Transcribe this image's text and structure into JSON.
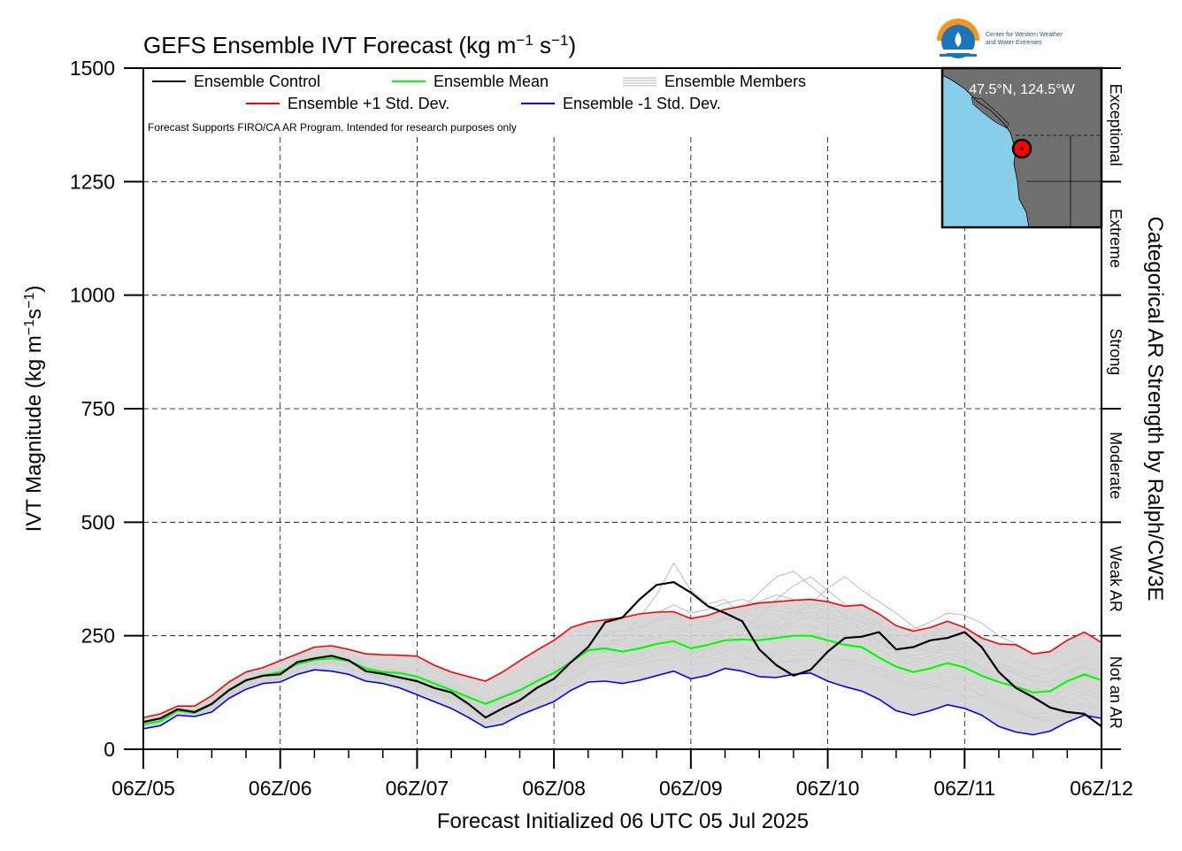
{
  "chart_data": {
    "type": "line",
    "title": "GEFS Ensemble IVT Forecast (kg m",
    "title_sup1": "−1",
    "title_s": " s",
    "title_sup2": "−1",
    "title_end": ")",
    "ylabel": "IVT Magnitude (kg m",
    "ylabel_sup1": "−1",
    "ylabel_s": "s",
    "ylabel_sup2": "−1",
    "ylabel_end": ")",
    "xlabel": "Forecast Initialized 06 UTC 05 Jul 2025",
    "right_label": "Categorical AR Strength by Ralph/CW3E",
    "ylim": [
      0,
      1500
    ],
    "xlim": [
      0,
      168
    ],
    "y_ticks": [
      0,
      250,
      500,
      750,
      1000,
      1250,
      1500
    ],
    "y_tick_labels": [
      "0",
      "250",
      "500",
      "750",
      "1000",
      "1250",
      "1500"
    ],
    "x_ticks": [
      0,
      24,
      48,
      72,
      96,
      120,
      144,
      168
    ],
    "x_tick_labels": [
      "06Z/05",
      "06Z/06",
      "06Z/07",
      "06Z/08",
      "06Z/09",
      "06Z/10",
      "06Z/11",
      "06Z/12"
    ],
    "grid": true,
    "legend_placement": "top-left",
    "note": "Forecast Supports FIRO/CA AR Program. Intended for research purposes only",
    "categories_right": [
      {
        "label": "Not an AR",
        "from": 0,
        "to": 250
      },
      {
        "label": "Weak AR",
        "from": 250,
        "to": 500
      },
      {
        "label": "Moderate",
        "from": 500,
        "to": 750
      },
      {
        "label": "Strong",
        "from": 750,
        "to": 1000
      },
      {
        "label": "Extreme",
        "from": 1000,
        "to": 1250
      },
      {
        "label": "Exceptional",
        "from": 1250,
        "to": 1500
      }
    ],
    "inset_map": {
      "label": "47.5°N, 124.5°W",
      "ocean_color": "#87ceeb",
      "land_color": "#707070",
      "marker_color": "#ff0000"
    },
    "logo": {
      "line1": "Center for Western Weather",
      "line2": "and Water Extremes",
      "colors": [
        "#f7941d",
        "#1a75bb",
        "#2a6f8f"
      ]
    },
    "x": [
      0,
      3,
      6,
      9,
      12,
      15,
      18,
      21,
      24,
      27,
      30,
      33,
      36,
      39,
      42,
      45,
      48,
      51,
      54,
      57,
      60,
      63,
      66,
      69,
      72,
      75,
      78,
      81,
      84,
      87,
      90,
      93,
      96,
      99,
      102,
      105,
      108,
      111,
      114,
      117,
      120,
      123,
      126,
      129,
      132,
      135,
      138,
      141,
      144,
      147,
      150,
      153,
      156,
      159,
      162,
      165,
      168
    ],
    "series": [
      {
        "name": "Ensemble Control",
        "color": "#000000",
        "width": 2.2,
        "values": [
          60,
          68,
          88,
          82,
          100,
          130,
          152,
          162,
          165,
          192,
          200,
          206,
          196,
          172,
          166,
          158,
          150,
          135,
          125,
          100,
          70,
          90,
          108,
          135,
          155,
          192,
          225,
          280,
          290,
          330,
          362,
          368,
          345,
          315,
          300,
          282,
          220,
          185,
          162,
          175,
          215,
          245,
          248,
          258,
          220,
          225,
          240,
          245,
          258,
          225,
          170,
          135,
          115,
          92,
          82,
          78,
          50
        ]
      },
      {
        "name": "Ensemble Mean",
        "color": "#00ff00",
        "width": 2.2,
        "values": [
          55,
          62,
          85,
          80,
          100,
          130,
          152,
          162,
          170,
          188,
          197,
          200,
          195,
          178,
          170,
          168,
          160,
          145,
          130,
          115,
          100,
          115,
          130,
          150,
          168,
          192,
          218,
          222,
          215,
          222,
          232,
          238,
          222,
          230,
          240,
          242,
          240,
          245,
          250,
          250,
          240,
          230,
          225,
          202,
          182,
          170,
          178,
          190,
          180,
          162,
          148,
          138,
          125,
          128,
          150,
          165,
          152
        ]
      },
      {
        "name": "Ensemble +1 Std. Dev.",
        "color": "#ff0000",
        "width": 1.6,
        "values": [
          70,
          78,
          95,
          95,
          118,
          148,
          170,
          180,
          195,
          210,
          225,
          228,
          220,
          210,
          208,
          207,
          205,
          185,
          170,
          160,
          150,
          170,
          195,
          218,
          240,
          268,
          280,
          285,
          290,
          298,
          302,
          303,
          288,
          295,
          308,
          315,
          322,
          325,
          328,
          330,
          325,
          315,
          318,
          298,
          272,
          260,
          268,
          282,
          268,
          245,
          232,
          230,
          210,
          215,
          240,
          258,
          235
        ]
      },
      {
        "name": "Ensemble -1 Std. Dev.",
        "color": "#0000ff",
        "width": 1.6,
        "values": [
          45,
          52,
          75,
          72,
          82,
          112,
          132,
          145,
          148,
          165,
          175,
          172,
          165,
          150,
          145,
          135,
          120,
          105,
          90,
          70,
          48,
          55,
          75,
          90,
          105,
          130,
          148,
          150,
          145,
          152,
          162,
          172,
          155,
          163,
          178,
          172,
          160,
          158,
          165,
          168,
          150,
          138,
          128,
          110,
          85,
          75,
          85,
          98,
          90,
          75,
          50,
          38,
          32,
          40,
          60,
          75,
          68
        ]
      }
    ],
    "ensemble_members": {
      "name": "Ensemble Members",
      "color": "#b4b4b4",
      "values": [
        [
          58,
          66,
          86,
          80,
          98,
          128,
          150,
          160,
          168,
          190,
          198,
          202,
          195,
          176,
          168,
          164,
          156,
          142,
          128,
          108,
          85,
          100,
          118,
          140,
          162,
          190,
          222,
          240,
          240,
          262,
          288,
          300,
          285,
          280,
          288,
          285,
          270,
          265,
          268,
          272,
          260,
          248,
          245,
          232,
          212,
          205,
          212,
          222,
          215,
          198,
          178,
          168,
          150,
          148,
          168,
          182,
          165
        ],
        [
          50,
          60,
          80,
          78,
          92,
          122,
          142,
          152,
          160,
          182,
          192,
          195,
          190,
          170,
          162,
          158,
          148,
          132,
          118,
          98,
          62,
          75,
          92,
          110,
          128,
          165,
          200,
          225,
          250,
          290,
          340,
          410,
          350,
          320,
          330,
          295,
          265,
          230,
          215,
          210,
          200,
          195,
          190,
          178,
          165,
          150,
          140,
          132,
          118,
          110,
          92,
          82,
          68,
          62,
          72,
          80,
          70
        ],
        [
          62,
          70,
          90,
          86,
          104,
          134,
          158,
          166,
          172,
          196,
          210,
          215,
          205,
          190,
          178,
          172,
          160,
          140,
          125,
          105,
          80,
          92,
          110,
          130,
          150,
          178,
          205,
          215,
          220,
          235,
          250,
          268,
          258,
          272,
          285,
          310,
          345,
          380,
          392,
          360,
          330,
          290,
          262,
          240,
          210,
          198,
          205,
          218,
          205,
          178,
          150,
          128,
          110,
          102,
          118,
          130,
          118
        ],
        [
          55,
          64,
          84,
          82,
          100,
          128,
          150,
          160,
          164,
          186,
          196,
          200,
          192,
          178,
          172,
          168,
          162,
          150,
          140,
          128,
          110,
          122,
          138,
          155,
          170,
          195,
          212,
          215,
          205,
          210,
          220,
          226,
          212,
          222,
          232,
          240,
          245,
          262,
          290,
          320,
          355,
          380,
          350,
          325,
          300,
          270,
          255,
          245,
          232,
          210,
          188,
          172,
          160,
          168,
          190,
          205,
          188
        ],
        [
          48,
          58,
          78,
          76,
          90,
          120,
          140,
          150,
          158,
          178,
          190,
          192,
          185,
          165,
          156,
          150,
          140,
          122,
          108,
          88,
          58,
          70,
          88,
          105,
          120,
          150,
          178,
          192,
          190,
          198,
          210,
          218,
          205,
          210,
          222,
          228,
          218,
          212,
          215,
          220,
          208,
          198,
          192,
          178,
          158,
          142,
          150,
          162,
          150,
          132,
          110,
          92,
          78,
          82,
          105,
          122,
          110
        ],
        [
          60,
          68,
          88,
          84,
          102,
          132,
          154,
          162,
          166,
          192,
          205,
          212,
          200,
          182,
          174,
          170,
          160,
          146,
          132,
          112,
          92,
          108,
          125,
          148,
          168,
          198,
          230,
          255,
          262,
          280,
          300,
          318,
          300,
          308,
          322,
          330,
          318,
          305,
          300,
          302,
          285,
          268,
          258,
          238,
          215,
          200,
          198,
          210,
          200,
          182,
          160,
          150,
          135,
          128,
          145,
          160,
          145
        ],
        [
          52,
          60,
          82,
          78,
          94,
          124,
          146,
          156,
          162,
          184,
          195,
          198,
          192,
          175,
          170,
          165,
          155,
          140,
          126,
          108,
          78,
          90,
          108,
          125,
          142,
          170,
          195,
          200,
          195,
          205,
          215,
          222,
          210,
          218,
          230,
          236,
          242,
          258,
          278,
          300,
          310,
          295,
          280,
          270,
          262,
          265,
          280,
          300,
          295,
          278,
          250,
          232,
          210,
          205,
          225,
          240,
          220
        ],
        [
          65,
          74,
          94,
          90,
          110,
          140,
          162,
          172,
          180,
          204,
          218,
          222,
          212,
          195,
          188,
          182,
          172,
          158,
          145,
          128,
          105,
          118,
          135,
          158,
          178,
          205,
          235,
          252,
          258,
          270,
          282,
          290,
          272,
          278,
          290,
          302,
          312,
          318,
          305,
          290,
          275,
          262,
          255,
          240,
          218,
          205,
          212,
          226,
          215,
          198,
          178,
          165,
          148,
          140,
          158,
          172,
          158
        ],
        [
          56,
          64,
          84,
          80,
          98,
          126,
          148,
          158,
          165,
          188,
          198,
          202,
          192,
          180,
          175,
          170,
          162,
          148,
          135,
          118,
          98,
          108,
          122,
          140,
          155,
          178,
          198,
          205,
          200,
          210,
          222,
          230,
          215,
          222,
          240,
          262,
          295,
          330,
          360,
          380,
          350,
          320,
          290,
          268,
          245,
          225,
          215,
          210,
          198,
          180,
          158,
          140,
          125,
          118,
          128,
          140,
          128
        ],
        [
          50,
          58,
          80,
          76,
          92,
          120,
          140,
          150,
          158,
          178,
          188,
          190,
          182,
          168,
          160,
          155,
          145,
          128,
          115,
          95,
          70,
          82,
          98,
          115,
          132,
          160,
          185,
          195,
          190,
          198,
          205,
          212,
          198,
          205,
          215,
          220,
          212,
          205,
          208,
          210,
          198,
          188,
          182,
          170,
          152,
          138,
          142,
          152,
          140,
          122,
          102,
          88,
          72,
          70,
          88,
          102,
          92
        ],
        [
          58,
          66,
          86,
          82,
          100,
          130,
          152,
          162,
          166,
          190,
          200,
          205,
          196,
          178,
          170,
          166,
          158,
          144,
          130,
          110,
          86,
          98,
          115,
          135,
          152,
          182,
          210,
          230,
          248,
          268,
          282,
          295,
          280,
          290,
          305,
          315,
          325,
          340,
          330,
          318,
          300,
          288,
          280,
          262,
          238,
          222,
          225,
          238,
          228,
          210,
          188,
          175,
          160,
          155,
          172,
          186,
          170
        ],
        [
          54,
          62,
          84,
          80,
          96,
          126,
          148,
          158,
          163,
          185,
          196,
          200,
          192,
          175,
          168,
          163,
          152,
          138,
          124,
          104,
          80,
          94,
          112,
          132,
          150,
          178,
          205,
          218,
          212,
          222,
          235,
          245,
          228,
          238,
          250,
          255,
          248,
          245,
          250,
          258,
          250,
          240,
          235,
          220,
          198,
          185,
          190,
          202,
          192,
          172,
          150,
          135,
          120,
          115,
          135,
          150,
          138
        ],
        [
          62,
          70,
          90,
          86,
          106,
          136,
          158,
          168,
          174,
          198,
          210,
          214,
          204,
          186,
          178,
          174,
          164,
          150,
          136,
          116,
          90,
          104,
          120,
          142,
          162,
          192,
          220,
          235,
          232,
          240,
          250,
          258,
          242,
          250,
          262,
          270,
          268,
          272,
          280,
          290,
          288,
          280,
          272,
          255,
          232,
          215,
          220,
          232,
          222,
          205,
          182,
          168,
          152,
          148,
          165,
          180,
          165
        ],
        [
          48,
          56,
          78,
          74,
          90,
          118,
          138,
          148,
          155,
          175,
          185,
          188,
          180,
          165,
          158,
          152,
          142,
          125,
          112,
          92,
          65,
          78,
          95,
          112,
          128,
          155,
          180,
          188,
          182,
          188,
          195,
          200,
          185,
          190,
          198,
          202,
          195,
          190,
          195,
          200,
          190,
          180,
          175,
          165,
          148,
          132,
          135,
          145,
          135,
          118,
          98,
          85,
          70,
          65,
          80,
          95,
          85
        ],
        [
          60,
          68,
          88,
          84,
          102,
          132,
          154,
          164,
          170,
          194,
          205,
          210,
          200,
          182,
          175,
          170,
          162,
          148,
          134,
          114,
          90,
          102,
          120,
          140,
          158,
          186,
          215,
          232,
          228,
          235,
          245,
          252,
          235,
          245,
          258,
          268,
          270,
          282,
          300,
          318,
          320,
          308,
          292,
          275,
          255,
          242,
          250,
          268,
          260,
          240,
          215,
          198,
          180,
          172,
          190,
          205,
          188
        ]
      ]
    }
  }
}
